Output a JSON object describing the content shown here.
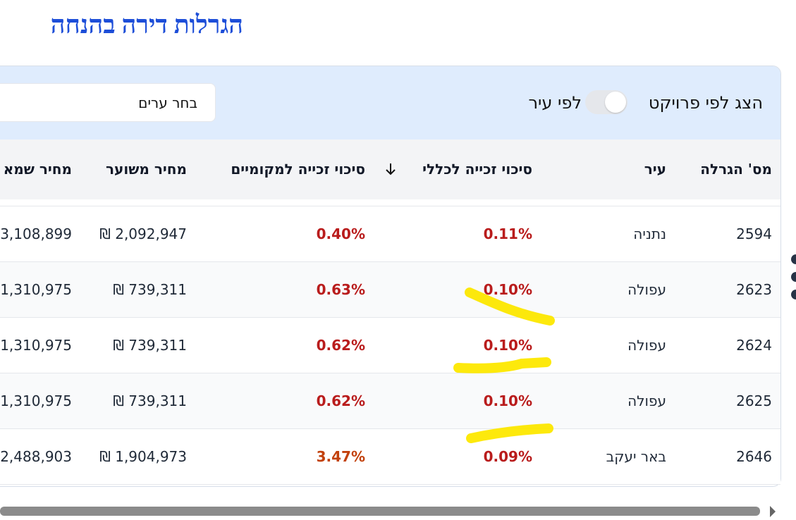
{
  "header": {
    "title": "הגרלות דירה בהנחה"
  },
  "controls": {
    "toggle_label": "הצג לפי פרויקט",
    "toggle_alt": "לפי עיר",
    "city_select": "בחר ערים"
  },
  "table": {
    "columns": [
      "מס' הגרלה",
      "עיר",
      "סיכוי זכייה לכללי",
      "סיכוי זכייה למקומיים",
      "מחיר משוער",
      "מחיר שמא"
    ],
    "rows": [
      {
        "id": "2594",
        "city": "נתניה",
        "general": "0.11%",
        "local": "0.40%",
        "local_color": "#b91c1c",
        "estimated": "₪ 2,092,947",
        "appraised": "3,108,899"
      },
      {
        "id": "2623",
        "city": "עפולה",
        "general": "0.10%",
        "local": "0.63%",
        "local_color": "#b91c1c",
        "estimated": "₪ 739,311",
        "appraised": "1,310,975"
      },
      {
        "id": "2624",
        "city": "עפולה",
        "general": "0.10%",
        "local": "0.62%",
        "local_color": "#b91c1c",
        "estimated": "₪ 739,311",
        "appraised": "1,310,975"
      },
      {
        "id": "2625",
        "city": "עפולה",
        "general": "0.10%",
        "local": "0.62%",
        "local_color": "#b91c1c",
        "estimated": "₪ 739,311",
        "appraised": "1,310,975"
      },
      {
        "id": "2646",
        "city": "באר יעקב",
        "general": "0.09%",
        "local": "3.47%",
        "local_color": "#c2410c",
        "estimated": "₪ 1,904,973",
        "appraised": "2,488,903"
      }
    ]
  }
}
